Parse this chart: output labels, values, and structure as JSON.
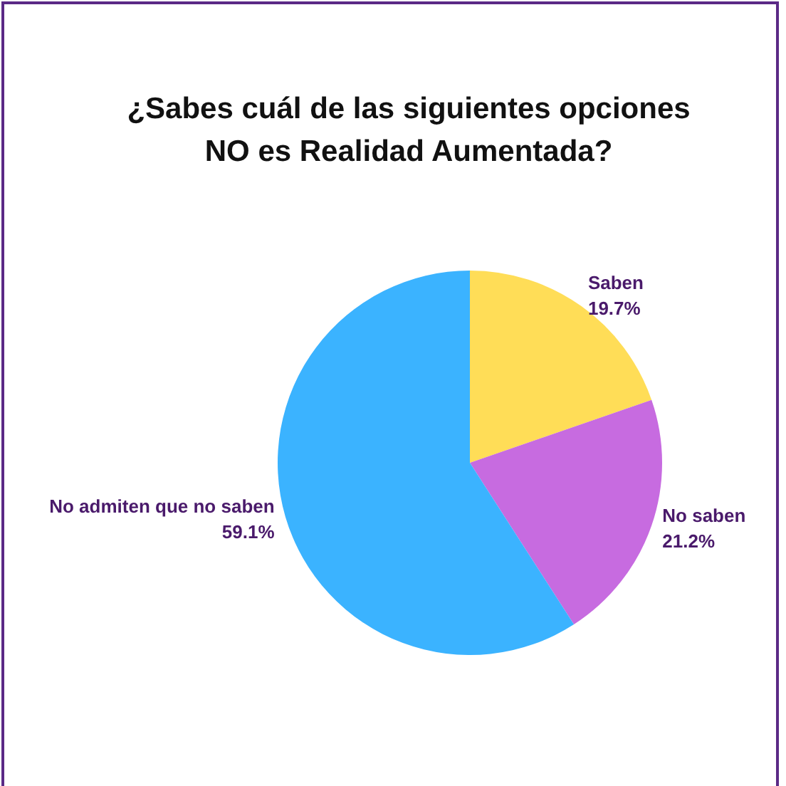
{
  "chart_data": {
    "type": "pie",
    "title": "¿Sabes cuál de las siguientes opciones\nNO es Realidad Aumentada?",
    "categories": [
      "Saben",
      "No saben",
      "No admiten que no saben"
    ],
    "values": [
      19.7,
      21.2,
      59.1
    ],
    "value_labels": [
      "19.7%",
      "21.2%",
      "59.1%"
    ],
    "colors": [
      "#ffdd57",
      "#c76be0",
      "#3bb3ff"
    ],
    "legend": false
  }
}
